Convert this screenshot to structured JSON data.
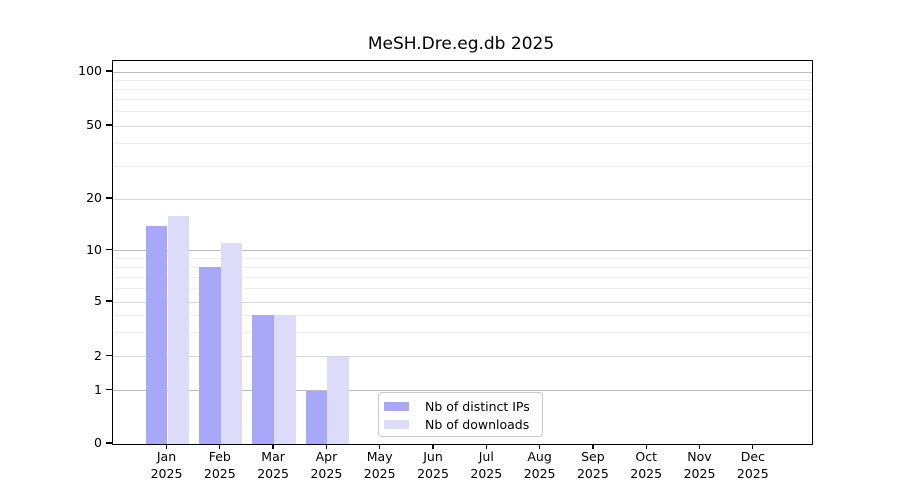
{
  "chart_data": {
    "type": "bar",
    "title": "MeSH.Dre.eg.db 2025",
    "year": "2025",
    "months": [
      "Jan",
      "Feb",
      "Mar",
      "Apr",
      "May",
      "Jun",
      "Jul",
      "Aug",
      "Sep",
      "Oct",
      "Nov",
      "Dec"
    ],
    "categories": [
      "Jan 2025",
      "Feb 2025",
      "Mar 2025",
      "Apr 2025",
      "May 2025",
      "Jun 2025",
      "Jul 2025",
      "Aug 2025",
      "Sep 2025",
      "Oct 2025",
      "Nov 2025",
      "Dec 2025"
    ],
    "series": [
      {
        "name": "Nb of distinct IPs",
        "color": "#a8a8fa",
        "values": [
          14,
          8,
          4,
          1,
          0,
          0,
          0,
          0,
          0,
          0,
          0,
          0
        ]
      },
      {
        "name": "Nb of downloads",
        "color": "#dcdcfa",
        "values": [
          16,
          11,
          4,
          2,
          0,
          0,
          0,
          0,
          0,
          0,
          0,
          0
        ]
      }
    ],
    "yticks": [
      0,
      1,
      2,
      5,
      10,
      20,
      50,
      100
    ],
    "y_minor_ticks": [
      3,
      4,
      6,
      7,
      8,
      9,
      30,
      40,
      60,
      70,
      80,
      90
    ],
    "ylim": [
      0,
      100
    ],
    "xlabel": "",
    "ylabel": "",
    "yscale": "log-like",
    "grid": "horizontal major and minor gridlines",
    "legend_position": "inside bottom-center"
  }
}
